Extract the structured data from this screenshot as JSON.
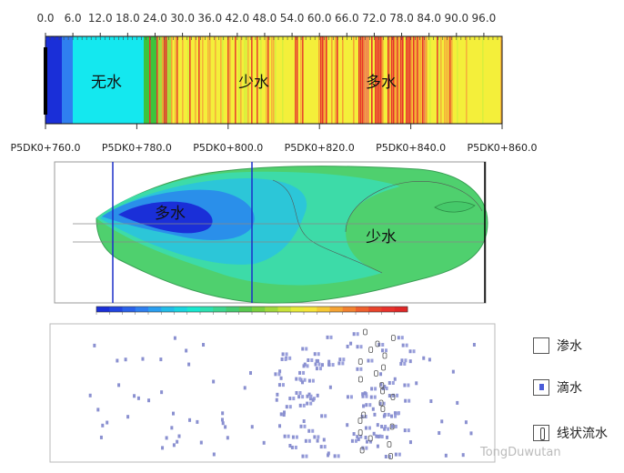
{
  "chart_data": [
    {
      "type": "heatmap",
      "x_ticks": [
        "0.0",
        "6.0",
        "12.0",
        "18.0",
        "24.0",
        "30.0",
        "36.0",
        "42.0",
        "48.0",
        "54.0",
        "60.0",
        "66.0",
        "72.0",
        "78.0",
        "84.0",
        "90.0",
        "96.0"
      ],
      "stations": [
        "P5DK0+760.0",
        "P5DK0+780.0",
        "P5DK0+800.0",
        "P5DK0+820.0",
        "P5DK0+840.0",
        "P5DK0+860.0"
      ],
      "zones": [
        "无水",
        "少水",
        "多水"
      ],
      "colors": {
        "dark_blue": "#1a2fd8",
        "cyan": "#14e8ef",
        "green": "#3cc43c",
        "yellow": "#f6f03c",
        "orange": "#f5a334",
        "red": "#e8322c"
      }
    },
    {
      "type": "heatmap",
      "labels": [
        "多水",
        "少水"
      ]
    }
  ],
  "legend": {
    "seepage": "渗水",
    "dripping": "滴水",
    "linear_flow": "线状流水"
  },
  "watermark": "TongDuwutan"
}
